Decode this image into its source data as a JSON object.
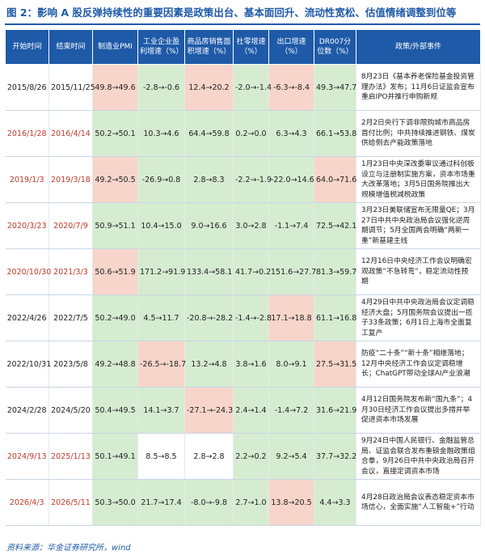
{
  "title": "图 2：影响 A 股反弹持续性的重要因素是政策出台、基本面回升、流动性宽松、估值情绪调整到位等",
  "columns": [
    "开始时间",
    "结束时间",
    "制造业PMI",
    "工业企业盈利增速（%）",
    "商品房销售面积增速（%）",
    "社零增速（%）",
    "出口增速（%）",
    "DR007分位数（%）",
    "政策/外部事件"
  ],
  "colors": {
    "header": "#1f5aa8",
    "green": "#d6ecd1",
    "red": "#f7d5ca",
    "date_red": "#c0392b"
  },
  "rows": [
    {
      "start": "2015/8/26",
      "end": "2015/11/25",
      "date_style": "plain",
      "cells": [
        "49.8→49.6",
        "-2.8→-0.6",
        "12.4→20.2",
        "-2.0→-1.4",
        "-6.3→-8.4",
        "49.3→47.7"
      ],
      "fills": [
        "r",
        "g",
        "r",
        "g",
        "r",
        "g"
      ],
      "event": "8月23日《基本养老保险基金投资管理办法》发布；11月6日证监会宣布重启IPO并推行申购新规"
    },
    {
      "start": "2016/1/28",
      "end": "2016/4/14",
      "date_style": "red",
      "cells": [
        "50.2→50.1",
        "10.3→4.6",
        "64.4→59.8",
        "0.2→0.0",
        "6.3→4.3",
        "66.1→53.8"
      ],
      "fills": [
        "g",
        "g",
        "g",
        "g",
        "g",
        "g"
      ],
      "event": "2月2日央行下调非限购城市商品房首付比例；中共持续推进钢铁、煤炭供给侧去产能政策落地"
    },
    {
      "start": "2019/1/3",
      "end": "2019/3/18",
      "date_style": "red",
      "cells": [
        "49.2→50.5",
        "-26.9→0.8",
        "2.8→8.3",
        "-2.2→-1.9",
        "-22.0→14.6",
        "64.0→71.6"
      ],
      "fills": [
        "r",
        "g",
        "g",
        "g",
        "g",
        "r"
      ],
      "event": "1月23日中央深改委审议通过科创板设立与注册制实施方案，资本市场重大改革落地；3月5日国务院推出大规模增值税减税政策"
    },
    {
      "start": "2020/3/23",
      "end": "2020/7/9",
      "date_style": "red",
      "cells": [
        "50.9→51.1",
        "10.4→15.0",
        "9.0→16.6",
        "3.0→2.8",
        "-1.1→7.4",
        "72.5→42.1"
      ],
      "fills": [
        "g",
        "g",
        "g",
        "g",
        "g",
        "g"
      ],
      "event": "3月23日美联储宣布无限量QE；3月27日中共中央政治局会议强化逆周期调节；5月全国两会明确“两新一重”新基建主线"
    },
    {
      "start": "2020/10/30",
      "end": "2021/3/3",
      "date_style": "red",
      "cells": [
        "50.6→51.9",
        "171.2→91.9",
        "133.4→58.1",
        "41.7→0.2",
        "151.6→27.7",
        "81.3→59.7"
      ],
      "fills": [
        "r",
        "g",
        "g",
        "g",
        "g",
        "g"
      ],
      "event": "12月16日中央经济工作会议明确宏观政策“不急转弯”，稳定流动性预期"
    },
    {
      "start": "2022/4/26",
      "end": "2022/7/5",
      "date_style": "plain",
      "cells": [
        "50.2→49.0",
        "4.5→11.7",
        "-20.8→-28.2",
        "-1.4→-2.8",
        "17.1→18.8",
        "61.1→16.8"
      ],
      "fills": [
        "g",
        "g",
        "g",
        "g",
        "r",
        "g"
      ],
      "event": "4月29日中共中央政治局会议定调稳经济大盘；5月国务院会议提出一揽子33条政策；6月1日上海市全面复工复产"
    },
    {
      "start": "2022/10/31",
      "end": "2023/5/8",
      "date_style": "plain",
      "cells": [
        "49.2→48.8",
        "-26.5→-18.7",
        "13.2→4.8",
        "3.8→1.6",
        "8.0→9.1",
        "27.5→31.5"
      ],
      "fills": [
        "g",
        "r",
        "g",
        "g",
        "g",
        "r"
      ],
      "event": "防疫“二十条”“新十条”相继落地；12月中央经济工作会议定调稳增长；ChatGPT带动全球AI产业浪潮"
    },
    {
      "start": "2024/2/28",
      "end": "2024/5/20",
      "date_style": "plain",
      "cells": [
        "50.4→49.5",
        "14.1→3.7",
        "-27.1→-24.3",
        "2.4→1.4",
        "-1.4→7.2",
        "31.6→21.9"
      ],
      "fills": [
        "g",
        "g",
        "r",
        "g",
        "g",
        "g"
      ],
      "event": "4月12日国务院发布新“国九条”；4月30日经济工作会议提出多措并举促进资本市场发展"
    },
    {
      "start": "2024/9/13",
      "end": "2025/1/13",
      "date_style": "red",
      "cells": [
        "50.1→49.1",
        "8.5→8.5",
        "2.8→2.8",
        "2.2→0.2",
        "9.2→5.4",
        "37.7→32.2"
      ],
      "fills": [
        "g",
        "w",
        "w",
        "g",
        "g",
        "g"
      ],
      "event": "9月24日中国人民银行、金融监管总局、证监会联合发布重磅金融政策组合拳，9月26日中共中央政治局召开会议，直接定调资本市场"
    },
    {
      "start": "2026/4/3",
      "end": "2026/5/11",
      "date_style": "red",
      "cells": [
        "50.3→50.0",
        "21.7→17.4",
        "-8.0→-9.8",
        "2.7→1.0",
        "13.8→20.5",
        "4.4→3.3"
      ],
      "fills": [
        "g",
        "g",
        "g",
        "g",
        "r",
        "g"
      ],
      "event": "4月28日政治局会议表态稳定资本市场信心，全面实施“人工智能+”行动"
    }
  ],
  "footer": "资料来源：华金证券研究所，wind"
}
